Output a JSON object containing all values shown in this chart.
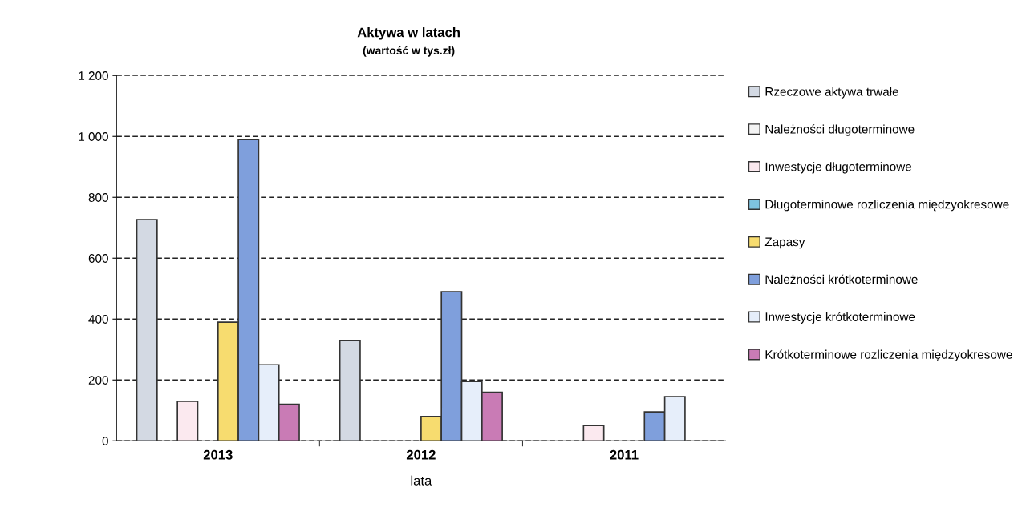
{
  "chart_data": {
    "type": "bar",
    "title": "Aktywa w latach",
    "subtitle": "(wartość w tys.zł)",
    "xlabel": "lata",
    "categories": [
      "2013",
      "2012",
      "2011"
    ],
    "series": [
      {
        "name": "Rzeczowe aktywa trwałe",
        "color": "#d3d9e3",
        "values": [
          727,
          330,
          null
        ]
      },
      {
        "name": "Należności długoterminowe",
        "color": "#f4f4f4",
        "values": [
          null,
          null,
          null
        ]
      },
      {
        "name": "Inwestycje długoterminowe",
        "color": "#fbe9ef",
        "values": [
          130,
          null,
          50
        ]
      },
      {
        "name": "Długoterminowe rozliczenia międzyokresowe",
        "color": "#7ec3e0",
        "values": [
          null,
          null,
          null
        ]
      },
      {
        "name": "Zapasy",
        "color": "#f7dc6f",
        "values": [
          390,
          80,
          null
        ]
      },
      {
        "name": "Należności krótkoterminowe",
        "color": "#7f9fdc",
        "values": [
          990,
          490,
          95
        ]
      },
      {
        "name": "Inwestycje krótkoterminowe",
        "color": "#e6eefa",
        "values": [
          250,
          195,
          145
        ]
      },
      {
        "name": "Krótkoterminowe rozliczenia międzyokresowe",
        "color": "#c97bb5",
        "values": [
          120,
          160,
          null
        ]
      }
    ],
    "ylim": [
      0,
      1200
    ],
    "yticks": [
      0,
      200,
      400,
      600,
      800,
      {
        "value": 1000,
        "label": "1 000"
      },
      {
        "value": 1200,
        "label": "1 200"
      }
    ],
    "grid": "y",
    "legend": "right"
  }
}
